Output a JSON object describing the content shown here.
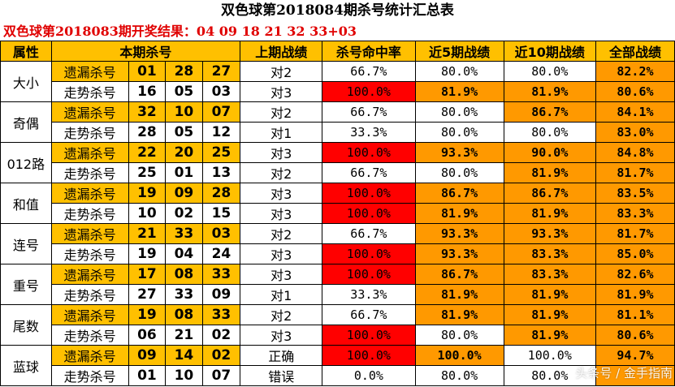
{
  "title": "双色球第2018084期杀号统计汇总表",
  "result_line": "双色球第2018083期开奖结果：04 09 18 21 32 33+03",
  "headers": {
    "attr": "属性",
    "kill": "本期杀号",
    "last": "上期战绩",
    "rate": "杀号命中率",
    "r5": "近5期战绩",
    "r10": "近10期战绩",
    "all": "全部战绩"
  },
  "groups": [
    {
      "name": "大小",
      "rows": [
        {
          "method": "遗漏杀号",
          "nums": [
            "01",
            "28",
            "27"
          ],
          "last": "对2",
          "rate": "66.7%",
          "r5": "80.0%",
          "r10": "80.0%",
          "all": "82.2%"
        },
        {
          "method": "走势杀号",
          "nums": [
            "16",
            "05",
            "03"
          ],
          "last": "对3",
          "rate": "100.0%",
          "r5": "81.9%",
          "r10": "81.9%",
          "all": "80.6%"
        }
      ]
    },
    {
      "name": "奇偶",
      "rows": [
        {
          "method": "遗漏杀号",
          "nums": [
            "32",
            "10",
            "07"
          ],
          "last": "对2",
          "rate": "66.7%",
          "r5": "80.0%",
          "r10": "86.7%",
          "all": "84.1%"
        },
        {
          "method": "走势杀号",
          "nums": [
            "28",
            "05",
            "12"
          ],
          "last": "对1",
          "rate": "33.3%",
          "r5": "80.0%",
          "r10": "80.0%",
          "all": "83.0%"
        }
      ]
    },
    {
      "name": "012路",
      "rows": [
        {
          "method": "遗漏杀号",
          "nums": [
            "22",
            "20",
            "25"
          ],
          "last": "对3",
          "rate": "100.0%",
          "r5": "93.3%",
          "r10": "90.0%",
          "all": "84.8%"
        },
        {
          "method": "走势杀号",
          "nums": [
            "25",
            "01",
            "13"
          ],
          "last": "对2",
          "rate": "66.7%",
          "r5": "80.0%",
          "r10": "81.9%",
          "all": "81.7%"
        }
      ]
    },
    {
      "name": "和值",
      "rows": [
        {
          "method": "遗漏杀号",
          "nums": [
            "19",
            "09",
            "28"
          ],
          "last": "对3",
          "rate": "100.0%",
          "r5": "86.7%",
          "r10": "86.7%",
          "all": "83.5%"
        },
        {
          "method": "走势杀号",
          "nums": [
            "10",
            "02",
            "15"
          ],
          "last": "对3",
          "rate": "100.0%",
          "r5": "81.9%",
          "r10": "81.9%",
          "all": "83.3%"
        }
      ]
    },
    {
      "name": "连号",
      "rows": [
        {
          "method": "遗漏杀号",
          "nums": [
            "21",
            "33",
            "03"
          ],
          "last": "对2",
          "rate": "66.7%",
          "r5": "93.3%",
          "r10": "93.3%",
          "all": "81.7%"
        },
        {
          "method": "走势杀号",
          "nums": [
            "19",
            "04",
            "24"
          ],
          "last": "对3",
          "rate": "100.0%",
          "r5": "93.3%",
          "r10": "83.3%",
          "all": "85.0%"
        }
      ]
    },
    {
      "name": "重号",
      "rows": [
        {
          "method": "遗漏杀号",
          "nums": [
            "17",
            "08",
            "33"
          ],
          "last": "对3",
          "rate": "100.0%",
          "r5": "86.7%",
          "r10": "83.3%",
          "all": "82.6%"
        },
        {
          "method": "走势杀号",
          "nums": [
            "27",
            "33",
            "09"
          ],
          "last": "对1",
          "rate": "33.3%",
          "r5": "81.9%",
          "r10": "81.9%",
          "all": "81.9%"
        }
      ]
    },
    {
      "name": "尾数",
      "rows": [
        {
          "method": "遗漏杀号",
          "nums": [
            "19",
            "08",
            "33"
          ],
          "last": "对2",
          "rate": "66.7%",
          "r5": "81.9%",
          "r10": "81.9%",
          "all": "81.1%"
        },
        {
          "method": "走势杀号",
          "nums": [
            "06",
            "21",
            "02"
          ],
          "last": "对3",
          "rate": "100.0%",
          "r5": "80.0%",
          "r10": "81.9%",
          "all": "80.6%"
        }
      ]
    },
    {
      "name": "蓝球",
      "rows": [
        {
          "method": "遗漏杀号",
          "nums": [
            "09",
            "14",
            "02"
          ],
          "last": "正确",
          "rate": "100.0%",
          "r5": "100.0%",
          "r10": "100.0%",
          "all": "94.7%"
        },
        {
          "method": "走势杀号",
          "nums": [
            "01",
            "10",
            "07"
          ],
          "last": "错误",
          "rate": "0.0%",
          "r5": "80.0%",
          "r10": "80.0%",
          "all": ""
        }
      ]
    }
  ],
  "watermark": "头条号 / 金手指南",
  "colors": {
    "header_yellow": "#ffc000",
    "hit_red": "#ff0000",
    "highlight_orange": "#ff9900",
    "result_text_red": "#e00000"
  }
}
